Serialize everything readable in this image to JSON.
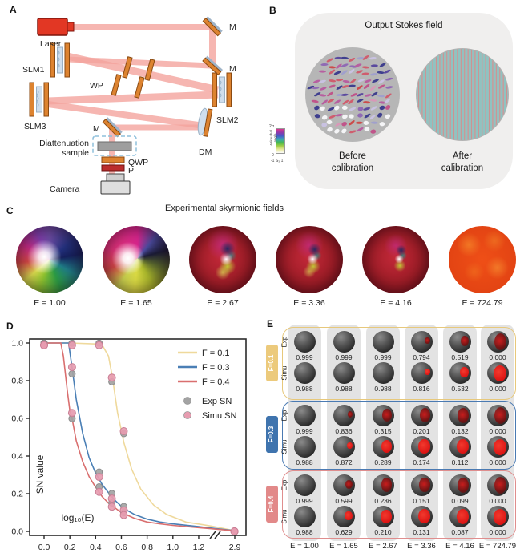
{
  "figure": {
    "panel_labels": {
      "a": "A",
      "b": "B",
      "c": "C",
      "d": "D",
      "e": "E"
    }
  },
  "panel_a": {
    "labels": {
      "laser": "Laser",
      "slm1": "SLM1",
      "slm2": "SLM2",
      "slm3": "SLM3",
      "wp": "WP",
      "m1": "M",
      "m2": "M",
      "m3": "M",
      "dm": "DM",
      "diattenuation_1": "Diattenuation",
      "diattenuation_2": "sample",
      "qwp": "QWP",
      "p": "P",
      "camera": "Camera"
    }
  },
  "panel_b": {
    "title": "Output Stokes field",
    "before_1": "Before",
    "before_2": "calibration",
    "after_1": "After",
    "after_2": "calibration",
    "colorbar": {
      "axis_label": "Azimuthal angle",
      "tick_top": "2π",
      "tick_bottom": "0",
      "x_ticks": [
        "-1",
        "S₃",
        "1"
      ]
    }
  },
  "panel_c": {
    "title": "Experimental skyrmionic fields",
    "e_labels": [
      "E = 1.00",
      "E = 1.65",
      "E = 2.67",
      "E = 3.36",
      "E = 4.16",
      "E = 724.79"
    ]
  },
  "chart_data": {
    "type": "line",
    "title": "",
    "xlabel": "log₁₀(E)",
    "ylabel": "SN value",
    "x_tick_labels": [
      "0.0",
      "0.2",
      "0.4",
      "0.6",
      "0.8",
      "1.0",
      "1.2",
      "2.9"
    ],
    "y_tick_labels": [
      "0.0",
      "0.2",
      "0.4",
      "0.6",
      "0.8",
      "1.0"
    ],
    "xlim_main": [
      0,
      1.3
    ],
    "x_break": {
      "after": 1.2,
      "resume": 2.9
    },
    "ylim": [
      0,
      1.05
    ],
    "x_points_log10E": [
      0,
      0.217,
      0.427,
      0.526,
      0.619,
      2.86
    ],
    "series": [
      {
        "name": "F = 0.1",
        "color": "#efd99c",
        "curve": [
          [
            0,
            1
          ],
          [
            0.2,
            1
          ],
          [
            0.4,
            0.995
          ],
          [
            0.45,
            0.99
          ],
          [
            0.5,
            0.93
          ],
          [
            0.53,
            0.82
          ],
          [
            0.57,
            0.63
          ],
          [
            0.62,
            0.47
          ],
          [
            0.68,
            0.33
          ],
          [
            0.75,
            0.225
          ],
          [
            0.85,
            0.14
          ],
          [
            0.95,
            0.09
          ],
          [
            1.1,
            0.05
          ],
          [
            1.3,
            0.028
          ],
          [
            2.9,
            0.004
          ]
        ]
      },
      {
        "name": "F = 0.3",
        "color": "#4a7fb5",
        "curve": [
          [
            0,
            1
          ],
          [
            0.19,
            1
          ],
          [
            0.217,
            0.87
          ],
          [
            0.25,
            0.7
          ],
          [
            0.3,
            0.52
          ],
          [
            0.35,
            0.39
          ],
          [
            0.4,
            0.31
          ],
          [
            0.45,
            0.25
          ],
          [
            0.5,
            0.205
          ],
          [
            0.55,
            0.165
          ],
          [
            0.6,
            0.133
          ],
          [
            0.65,
            0.11
          ],
          [
            0.7,
            0.09
          ],
          [
            0.8,
            0.065
          ],
          [
            0.9,
            0.05
          ],
          [
            1.0,
            0.04
          ],
          [
            1.2,
            0.025
          ],
          [
            2.9,
            0.004
          ]
        ]
      },
      {
        "name": "F = 0.4",
        "color": "#d96f6f",
        "curve": [
          [
            0,
            1
          ],
          [
            0.13,
            1
          ],
          [
            0.15,
            0.93
          ],
          [
            0.18,
            0.75
          ],
          [
            0.2,
            0.64
          ],
          [
            0.217,
            0.6
          ],
          [
            0.25,
            0.48
          ],
          [
            0.3,
            0.37
          ],
          [
            0.35,
            0.29
          ],
          [
            0.4,
            0.235
          ],
          [
            0.45,
            0.185
          ],
          [
            0.5,
            0.15
          ],
          [
            0.55,
            0.125
          ],
          [
            0.6,
            0.1
          ],
          [
            0.65,
            0.085
          ],
          [
            0.7,
            0.07
          ],
          [
            0.8,
            0.05
          ],
          [
            0.9,
            0.04
          ],
          [
            1.0,
            0.032
          ],
          [
            1.2,
            0.02
          ],
          [
            2.9,
            0.003
          ]
        ]
      }
    ],
    "scatter": [
      {
        "name": "Exp SN",
        "color": "#a3a3a3",
        "points": [
          [
            0,
            0.999
          ],
          [
            0.217,
            0.999
          ],
          [
            0.427,
            0.999
          ],
          [
            0.526,
            0.794
          ],
          [
            0.619,
            0.519
          ],
          [
            2.86,
            0
          ],
          [
            0,
            0.999
          ],
          [
            0.217,
            0.836
          ],
          [
            0.427,
            0.315
          ],
          [
            0.526,
            0.201
          ],
          [
            0.619,
            0.132
          ],
          [
            2.86,
            0
          ],
          [
            0,
            0.999
          ],
          [
            0.217,
            0.599
          ],
          [
            0.427,
            0.236
          ],
          [
            0.526,
            0.151
          ],
          [
            0.619,
            0.099
          ],
          [
            2.86,
            0
          ]
        ]
      },
      {
        "name": "Simu SN",
        "color": "#e79cb0",
        "points": [
          [
            0,
            0.988
          ],
          [
            0.217,
            0.988
          ],
          [
            0.427,
            0.988
          ],
          [
            0.526,
            0.816
          ],
          [
            0.619,
            0.532
          ],
          [
            2.86,
            0
          ],
          [
            0,
            0.988
          ],
          [
            0.217,
            0.872
          ],
          [
            0.427,
            0.289
          ],
          [
            0.526,
            0.174
          ],
          [
            0.619,
            0.112
          ],
          [
            2.86,
            0
          ],
          [
            0,
            0.988
          ],
          [
            0.217,
            0.629
          ],
          [
            0.427,
            0.21
          ],
          [
            0.526,
            0.131
          ],
          [
            0.619,
            0.087
          ],
          [
            2.86,
            0
          ]
        ]
      }
    ],
    "legend": [
      {
        "label": "F = 0.1",
        "type": "line",
        "color": "#efd99c"
      },
      {
        "label": "F = 0.3",
        "type": "line",
        "color": "#4a7fb5"
      },
      {
        "label": "F = 0.4",
        "type": "line",
        "color": "#d96f6f"
      },
      {
        "label": "Exp SN",
        "type": "dot",
        "color": "#a3a3a3"
      },
      {
        "label": "Simu SN",
        "type": "dot",
        "color": "#e79cb0"
      }
    ],
    "legend_position": "upper right",
    "grid": false
  },
  "panel_e": {
    "row_labels": {
      "exp": "Exp",
      "simu": "Simu"
    },
    "groups": [
      {
        "f_label": "F=0.1",
        "border_color": "#e7c87b",
        "tab_color": "#ecca7c",
        "exp": [
          "0.999",
          "0.999",
          "0.999",
          "0.794",
          "0.519",
          "0.000"
        ],
        "simu": [
          "0.988",
          "0.988",
          "0.988",
          "0.816",
          "0.532",
          "0.000"
        ]
      },
      {
        "f_label": "F=0.3",
        "border_color": "#4a7ab2",
        "tab_color": "#3f74ae",
        "exp": [
          "0.999",
          "0.836",
          "0.315",
          "0.201",
          "0.132",
          "0.000"
        ],
        "simu": [
          "0.988",
          "0.872",
          "0.289",
          "0.174",
          "0.112",
          "0.000"
        ]
      },
      {
        "f_label": "F=0.4",
        "border_color": "#df8e8e",
        "tab_color": "#e28989",
        "exp": [
          "0.999",
          "0.599",
          "0.236",
          "0.151",
          "0.099",
          "0.000"
        ],
        "simu": [
          "0.988",
          "0.629",
          "0.210",
          "0.131",
          "0.087",
          "0.000"
        ]
      }
    ],
    "e_labels": [
      "E = 1.00",
      "E = 1.65",
      "E = 2.67",
      "E = 3.36",
      "E = 4.16",
      "E = 724.79"
    ]
  }
}
